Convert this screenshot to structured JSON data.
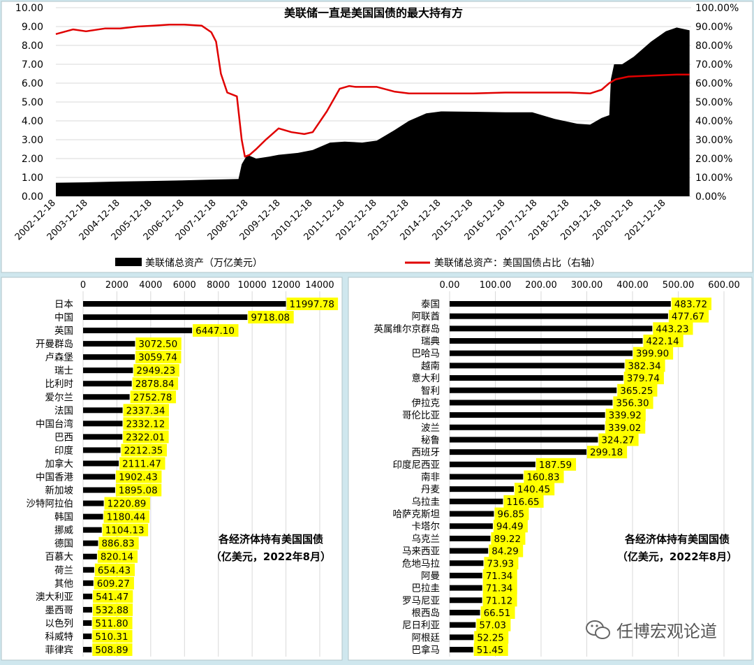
{
  "colors": {
    "background": "#cfe7ee",
    "panel": "#ffffff",
    "asset_fill": "#000000",
    "share_line": "#e00000",
    "label_highlight": "#ffff00",
    "bar": "#000000"
  },
  "chart_data": [
    {
      "type": "area",
      "title": "美联储一直是美国国债的最大持有方",
      "x_ticks": [
        "2002-12-18",
        "2003-12-18",
        "2004-12-18",
        "2005-12-18",
        "2006-12-18",
        "2007-12-18",
        "2008-12-18",
        "2009-12-18",
        "2010-12-18",
        "2011-12-18",
        "2012-12-18",
        "2013-12-18",
        "2014-12-18",
        "2015-12-18",
        "2016-12-18",
        "2017-12-18",
        "2018-12-18",
        "2019-12-18",
        "2020-12-18",
        "2021-12-18"
      ],
      "y_left_ticks": [
        "0.00",
        "1.00",
        "2.00",
        "3.00",
        "4.00",
        "5.00",
        "6.00",
        "7.00",
        "8.00",
        "9.00",
        "10.00"
      ],
      "y_right_ticks": [
        "0.00%",
        "10.00%",
        "20.00%",
        "30.00%",
        "40.00%",
        "50.00%",
        "60.00%",
        "70.00%",
        "80.00%",
        "90.00%",
        "100.00%"
      ],
      "ylim_left": [
        0,
        10
      ],
      "ylim_right": [
        0,
        1
      ],
      "grid": true,
      "legend_position": "bottom",
      "series": [
        {
          "name": "美联储总资产（万亿美元）",
          "type": "area",
          "axis": "left",
          "points": [
            [
              2002.96,
              0.72
            ],
            [
              2003.9,
              0.74
            ],
            [
              2004.9,
              0.78
            ],
            [
              2005.9,
              0.81
            ],
            [
              2006.9,
              0.84
            ],
            [
              2007.7,
              0.88
            ],
            [
              2008.65,
              0.92
            ],
            [
              2008.75,
              1.7
            ],
            [
              2008.92,
              2.2
            ],
            [
              2009.2,
              2.0
            ],
            [
              2009.6,
              2.1
            ],
            [
              2009.9,
              2.2
            ],
            [
              2010.5,
              2.3
            ],
            [
              2010.96,
              2.45
            ],
            [
              2011.5,
              2.85
            ],
            [
              2011.96,
              2.9
            ],
            [
              2012.5,
              2.85
            ],
            [
              2012.96,
              2.95
            ],
            [
              2013.5,
              3.5
            ],
            [
              2013.96,
              4.0
            ],
            [
              2014.5,
              4.4
            ],
            [
              2014.96,
              4.5
            ],
            [
              2015.96,
              4.48
            ],
            [
              2016.96,
              4.45
            ],
            [
              2017.8,
              4.45
            ],
            [
              2018.5,
              4.1
            ],
            [
              2019.2,
              3.85
            ],
            [
              2019.6,
              3.8
            ],
            [
              2019.96,
              4.15
            ],
            [
              2020.2,
              4.3
            ],
            [
              2020.25,
              6.2
            ],
            [
              2020.35,
              7.0
            ],
            [
              2020.6,
              7.0
            ],
            [
              2020.96,
              7.4
            ],
            [
              2021.5,
              8.2
            ],
            [
              2021.96,
              8.75
            ],
            [
              2022.3,
              8.95
            ],
            [
              2022.7,
              8.8
            ]
          ]
        },
        {
          "name": "美联储总资产：美国国债占比（右轴）",
          "type": "line",
          "axis": "right",
          "points": [
            [
              2002.96,
              0.86
            ],
            [
              2003.5,
              0.885
            ],
            [
              2003.9,
              0.875
            ],
            [
              2004.5,
              0.89
            ],
            [
              2004.96,
              0.89
            ],
            [
              2005.5,
              0.9
            ],
            [
              2006.0,
              0.905
            ],
            [
              2006.5,
              0.91
            ],
            [
              2006.96,
              0.91
            ],
            [
              2007.5,
              0.905
            ],
            [
              2007.8,
              0.87
            ],
            [
              2007.95,
              0.82
            ],
            [
              2008.1,
              0.65
            ],
            [
              2008.3,
              0.55
            ],
            [
              2008.6,
              0.53
            ],
            [
              2008.75,
              0.3
            ],
            [
              2008.85,
              0.21
            ],
            [
              2009.0,
              0.22
            ],
            [
              2009.2,
              0.25
            ],
            [
              2009.5,
              0.3
            ],
            [
              2009.9,
              0.36
            ],
            [
              2010.3,
              0.34
            ],
            [
              2010.7,
              0.33
            ],
            [
              2010.96,
              0.34
            ],
            [
              2011.4,
              0.45
            ],
            [
              2011.8,
              0.57
            ],
            [
              2012.1,
              0.585
            ],
            [
              2012.3,
              0.58
            ],
            [
              2012.96,
              0.58
            ],
            [
              2013.5,
              0.555
            ],
            [
              2013.96,
              0.545
            ],
            [
              2014.96,
              0.545
            ],
            [
              2015.96,
              0.545
            ],
            [
              2016.96,
              0.55
            ],
            [
              2017.96,
              0.55
            ],
            [
              2018.96,
              0.55
            ],
            [
              2019.6,
              0.545
            ],
            [
              2019.96,
              0.565
            ],
            [
              2020.2,
              0.6
            ],
            [
              2020.4,
              0.62
            ],
            [
              2020.8,
              0.635
            ],
            [
              2021.5,
              0.64
            ],
            [
              2022.3,
              0.645
            ],
            [
              2022.7,
              0.645
            ]
          ]
        }
      ]
    },
    {
      "type": "bar",
      "orientation": "horizontal",
      "title": "各经济体持有美国国债",
      "subtitle": "（亿美元，2022年8月）",
      "x_ticks": [
        "0",
        "2000",
        "4000",
        "6000",
        "8000",
        "10000",
        "12000",
        "14000"
      ],
      "xlim": [
        0,
        14000
      ],
      "grid": true,
      "categories": [
        "日本",
        "中国",
        "英国",
        "开曼群岛",
        "卢森堡",
        "瑞士",
        "比利时",
        "爱尔兰",
        "法国",
        "中国台湾",
        "巴西",
        "印度",
        "加拿大",
        "中国香港",
        "新加坡",
        "沙特阿拉伯",
        "韩国",
        "挪威",
        "德国",
        "百慕大",
        "荷兰",
        "其他",
        "澳大利亚",
        "墨西哥",
        "以色列",
        "科威特",
        "菲律宾"
      ],
      "values": [
        11997.78,
        9718.08,
        6447.1,
        3072.5,
        3059.74,
        2949.23,
        2878.84,
        2752.78,
        2337.34,
        2332.12,
        2322.01,
        2212.35,
        2111.47,
        1902.43,
        1895.08,
        1220.89,
        1180.44,
        1104.13,
        886.83,
        820.14,
        654.43,
        609.27,
        541.47,
        532.88,
        511.8,
        510.31,
        508.89
      ],
      "labels": [
        "11997.78",
        "9718.08",
        "6447.10",
        "3072.50",
        "3059.74",
        "2949.23",
        "2878.84",
        "2752.78",
        "2337.34",
        "2332.12",
        "2322.01",
        "2212.35",
        "2111.47",
        "1902.43",
        "1895.08",
        "1220.89",
        "1180.44",
        "1104.13",
        "886.83",
        "820.14",
        "654.43",
        "609.27",
        "541.47",
        "532.88",
        "511.80",
        "510.31",
        "508.89"
      ]
    },
    {
      "type": "bar",
      "orientation": "horizontal",
      "title": "各经济体持有美国国债",
      "subtitle": "（亿美元，2022年8月）",
      "x_ticks": [
        "0.00",
        "100.00",
        "200.00",
        "300.00",
        "400.00",
        "500.00",
        "600.00"
      ],
      "xlim": [
        0,
        600
      ],
      "grid": true,
      "categories": [
        "泰国",
        "阿联酋",
        "英属维尔京群岛",
        "瑞典",
        "巴哈马",
        "越南",
        "意大利",
        "智利",
        "伊拉克",
        "哥伦比亚",
        "波兰",
        "秘鲁",
        "西班牙",
        "印度尼西亚",
        "南非",
        "丹麦",
        "乌拉圭",
        "哈萨克斯坦",
        "卡塔尔",
        "乌克兰",
        "马来西亚",
        "危地马拉",
        "阿曼",
        "巴拉圭",
        "罗马尼亚",
        "根西岛",
        "尼日利亚",
        "阿根廷",
        "巴拿马"
      ],
      "values": [
        483.72,
        477.67,
        443.23,
        422.14,
        399.9,
        382.34,
        379.74,
        365.25,
        356.3,
        339.92,
        339.02,
        324.27,
        299.18,
        187.59,
        160.83,
        140.45,
        116.65,
        96.85,
        94.49,
        89.22,
        84.29,
        73.93,
        71.34,
        71.34,
        71.12,
        66.51,
        57.03,
        52.25,
        51.45
      ],
      "labels": [
        "483.72",
        "477.67",
        "443.23",
        "422.14",
        "399.90",
        "382.34",
        "379.74",
        "365.25",
        "356.30",
        "339.92",
        "339.02",
        "324.27",
        "299.18",
        "187.59",
        "160.83",
        "140.45",
        "116.65",
        "96.85",
        "94.49",
        "89.22",
        "84.29",
        "73.93",
        "71.34",
        "71.34",
        "71.12",
        "66.51",
        "57.03",
        "52.25",
        "51.45"
      ]
    }
  ],
  "watermark": {
    "icon": "wechat-icon",
    "text": "任博宏观论道"
  }
}
